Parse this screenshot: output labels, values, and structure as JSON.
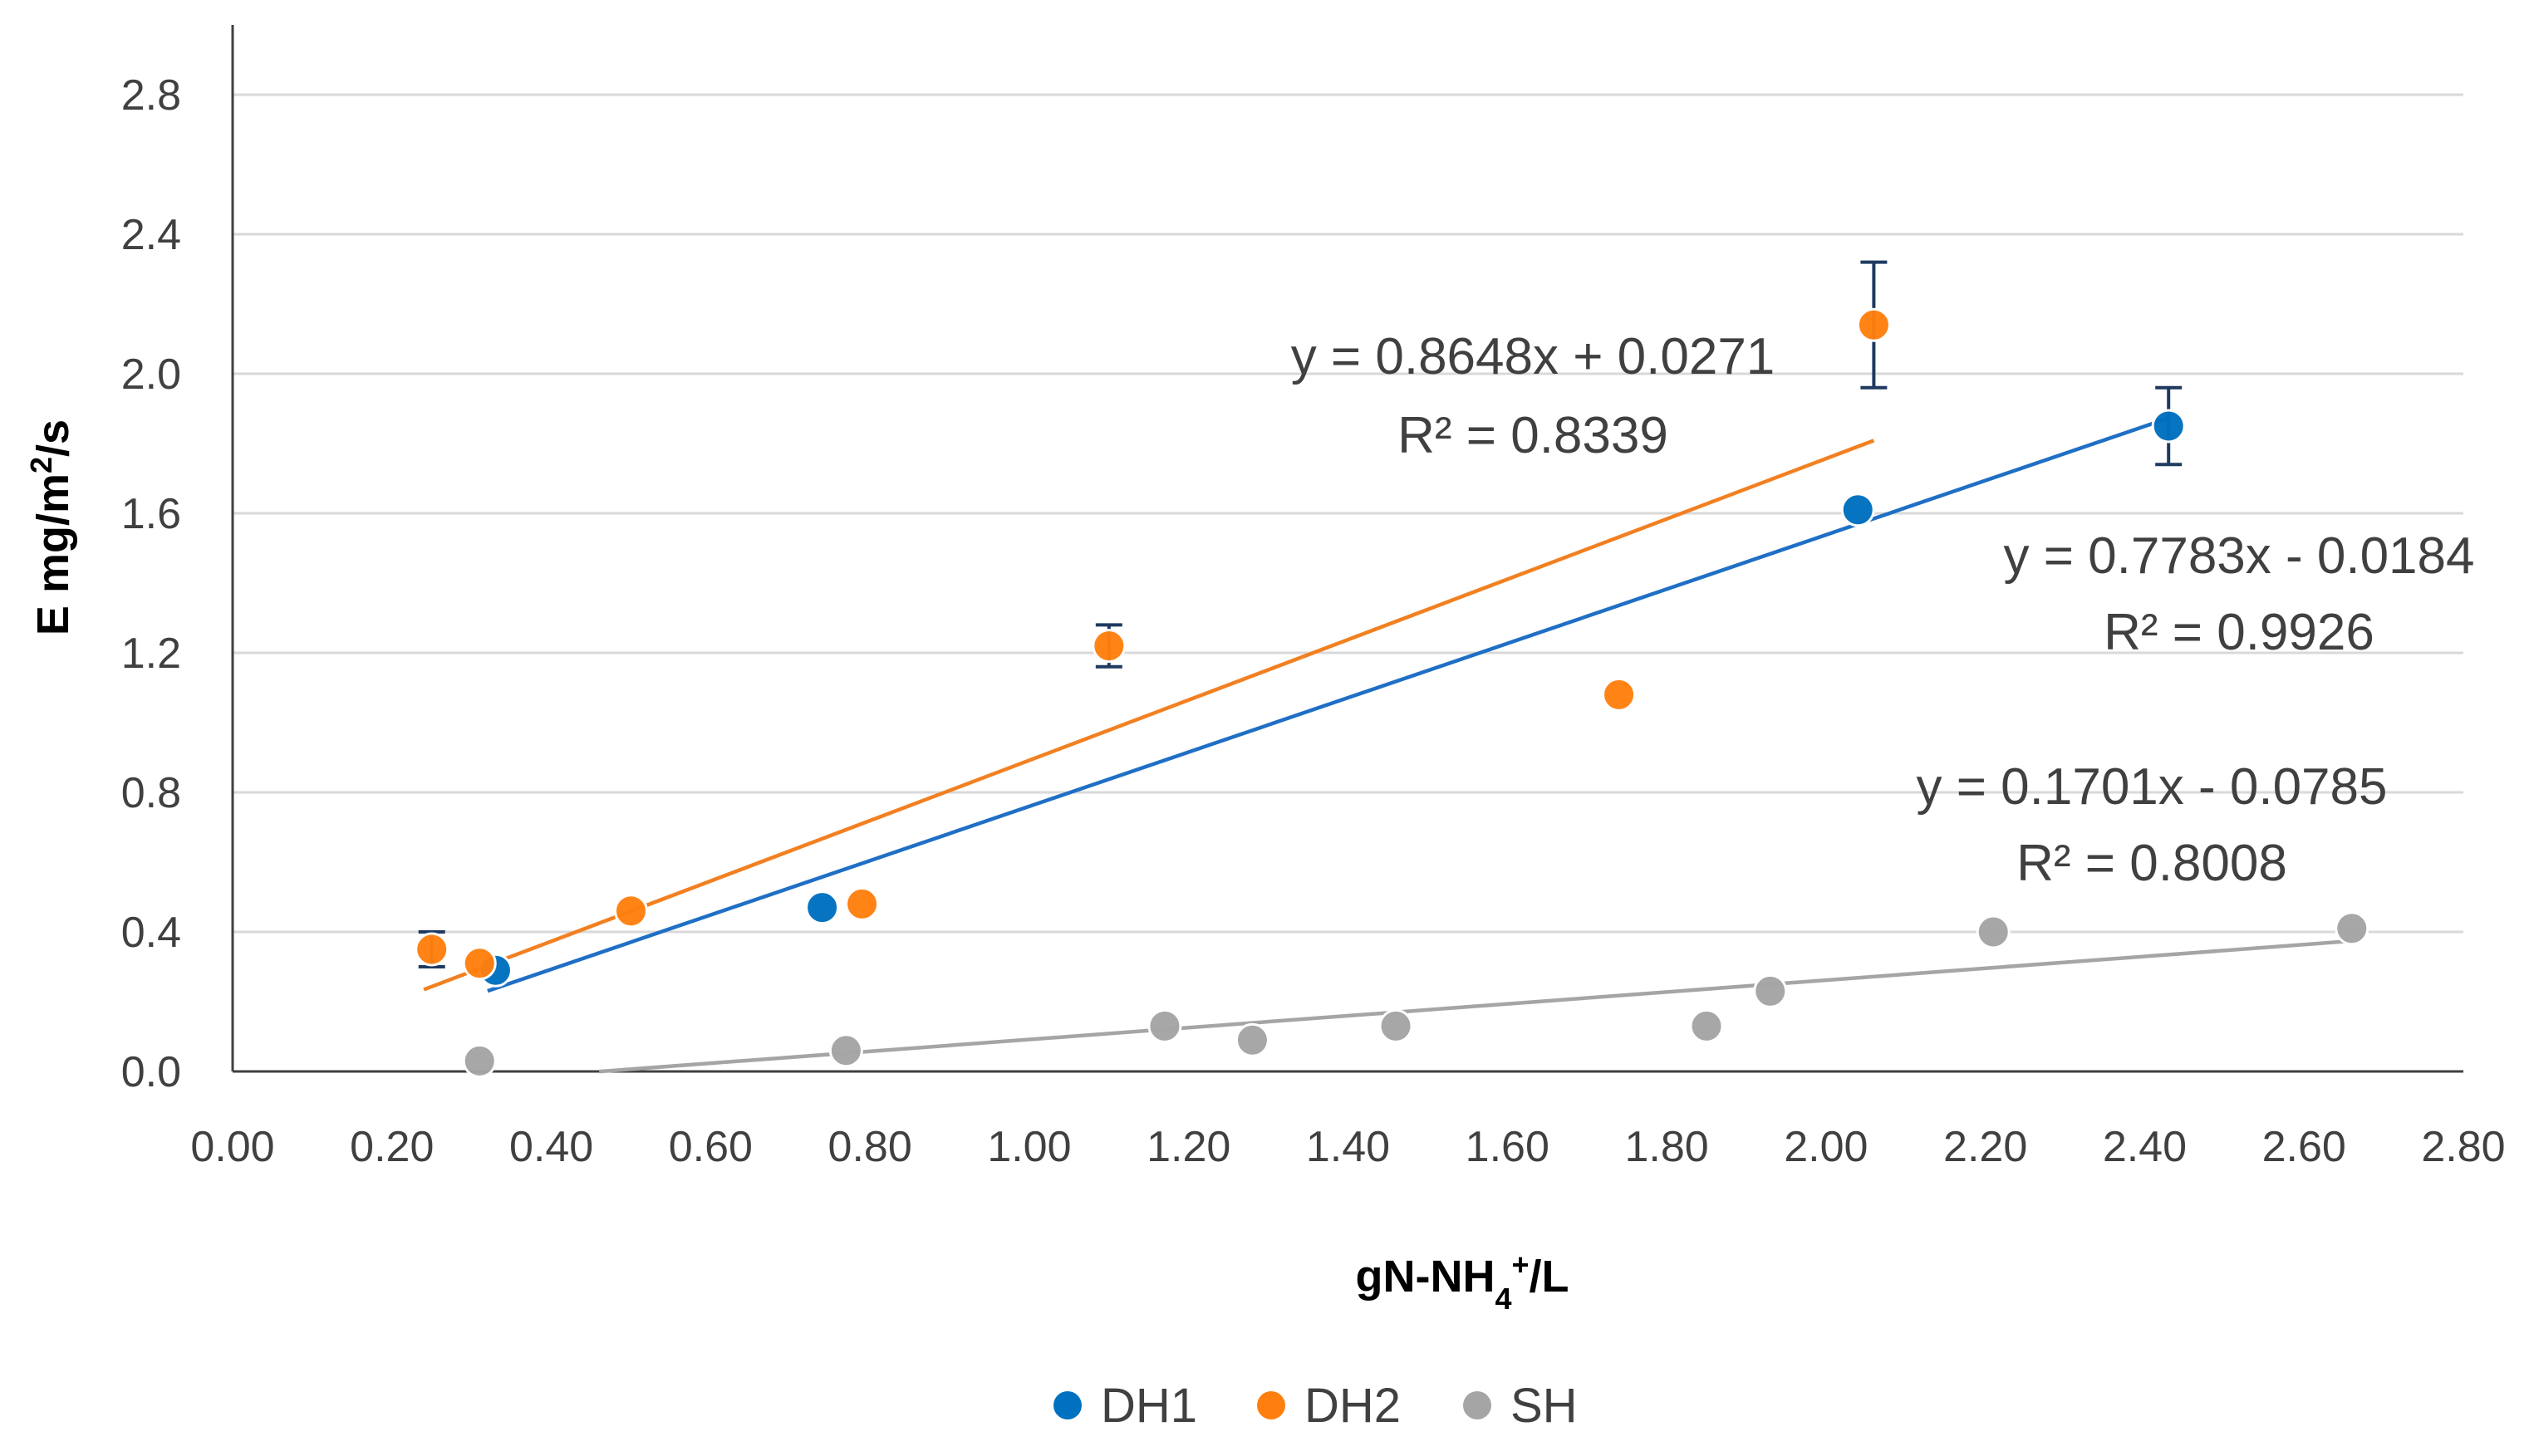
{
  "chart_data": {
    "type": "scatter",
    "title": "",
    "xlabel": "gN-NH",
    "xlabel_sub": "4",
    "xlabel_sup": "+",
    "xlabel_tail": "/L",
    "ylabel": "E mg/m",
    "ylabel_sup": "2",
    "ylabel_tail": "/s",
    "xlim": [
      0.0,
      2.8
    ],
    "ylim": [
      0.0,
      3.0
    ],
    "x_ticks": [
      "0.00",
      "0.20",
      "0.40",
      "0.60",
      "0.80",
      "1.00",
      "1.20",
      "1.40",
      "1.60",
      "1.80",
      "2.00",
      "2.20",
      "2.40",
      "2.60",
      "2.80"
    ],
    "y_ticks": [
      "0.0",
      "0.4",
      "0.8",
      "1.2",
      "1.6",
      "2.0",
      "2.4",
      "2.8"
    ],
    "legend_position": "bottom",
    "series": [
      {
        "name": "DH1",
        "color": "#0070c0",
        "points": [
          {
            "x": 0.33,
            "y": 0.29
          },
          {
            "x": 0.74,
            "y": 0.47
          },
          {
            "x": 2.04,
            "y": 1.61
          },
          {
            "x": 2.43,
            "y": 1.85,
            "err": 0.11
          }
        ],
        "trendline": {
          "slope": 0.7783,
          "intercept": -0.0184,
          "x_range": [
            0.32,
            2.43
          ],
          "line_color": "#1f6fc5"
        },
        "equation": "y = 0.7783x - 0.0184",
        "r2": "R² = 0.9926"
      },
      {
        "name": "DH2",
        "color": "#ff7f0e",
        "points": [
          {
            "x": 0.25,
            "y": 0.35,
            "err": 0.05
          },
          {
            "x": 0.31,
            "y": 0.31
          },
          {
            "x": 0.5,
            "y": 0.46
          },
          {
            "x": 0.79,
            "y": 0.48
          },
          {
            "x": 1.1,
            "y": 1.22,
            "err": 0.06
          },
          {
            "x": 1.74,
            "y": 1.08
          },
          {
            "x": 2.06,
            "y": 2.14,
            "err": 0.18
          }
        ],
        "trendline": {
          "slope": 0.8648,
          "intercept": 0.0271,
          "x_range": [
            0.24,
            2.06
          ],
          "line_color": "#f28021"
        },
        "equation": "y = 0.8648x + 0.0271",
        "r2": "R² = 0.8339"
      },
      {
        "name": "SH",
        "color": "#a5a5a5",
        "points": [
          {
            "x": 0.31,
            "y": 0.03
          },
          {
            "x": 0.77,
            "y": 0.06
          },
          {
            "x": 1.17,
            "y": 0.13
          },
          {
            "x": 1.28,
            "y": 0.09
          },
          {
            "x": 1.46,
            "y": 0.13
          },
          {
            "x": 1.85,
            "y": 0.13
          },
          {
            "x": 1.93,
            "y": 0.23
          },
          {
            "x": 2.21,
            "y": 0.4
          },
          {
            "x": 2.66,
            "y": 0.41
          }
        ],
        "trendline": {
          "slope": 0.1701,
          "intercept": -0.0785,
          "x_range": [
            0.46,
            2.66
          ],
          "line_color": "#a5a5a5"
        },
        "equation": "y = 0.1701x - 0.0785",
        "r2": "R² = 0.8008"
      }
    ]
  }
}
